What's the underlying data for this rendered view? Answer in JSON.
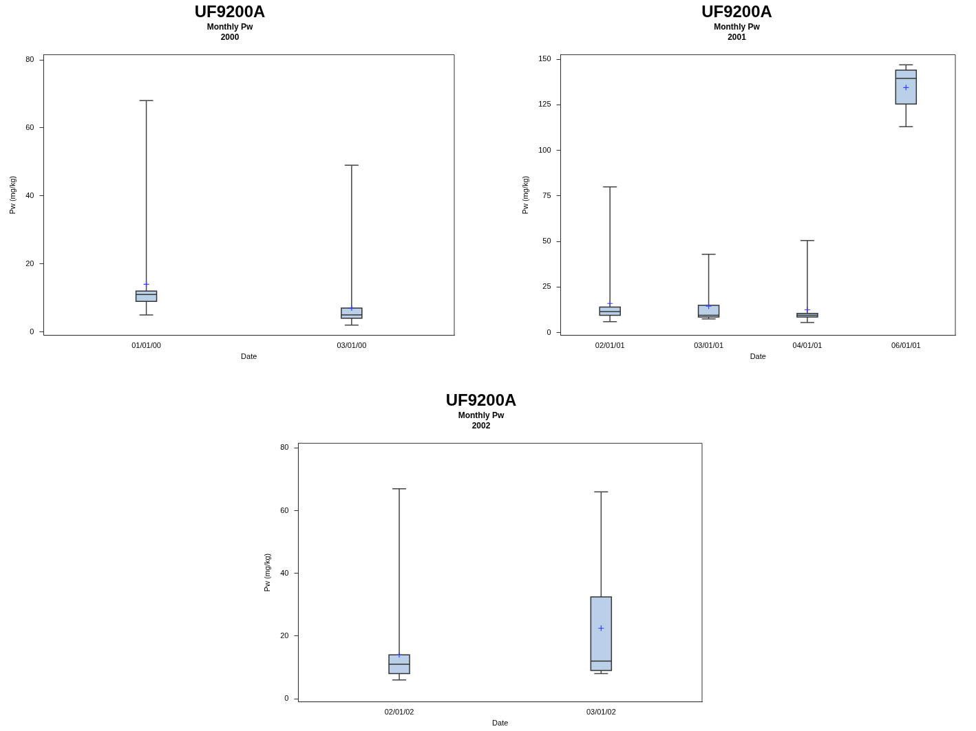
{
  "chart_data": [
    {
      "type": "box",
      "title": "UF9200A",
      "subtitle": "Monthly Pw\n2000",
      "xlabel": "Date",
      "ylabel": "Pw (mg/kg)",
      "categories": [
        "01/01/00",
        "03/01/00"
      ],
      "ylim": [
        -1,
        81.5
      ],
      "yticks": [
        0,
        20,
        40,
        60,
        80
      ],
      "grid": false,
      "legend": false,
      "series": [
        {
          "color": "#b9d0e8",
          "boxes": [
            {
              "low": 5,
              "q1": 9,
              "median": 11,
              "q3": 12,
              "high": 68,
              "mean": 14
            },
            {
              "low": 2,
              "q1": 4,
              "median": 5,
              "q3": 7,
              "high": 49,
              "mean": 7
            }
          ]
        }
      ]
    },
    {
      "type": "box",
      "title": "UF9200A",
      "subtitle": "Monthly Pw\n2001",
      "xlabel": "Date",
      "ylabel": "Pw (mg/kg)",
      "categories": [
        "02/01/01",
        "03/01/01",
        "04/01/01",
        "06/01/01"
      ],
      "ylim": [
        -1.5,
        152.5
      ],
      "yticks": [
        0,
        25,
        50,
        75,
        100,
        125,
        150
      ],
      "grid": false,
      "legend": false,
      "series": [
        {
          "color": "#b9d0e8",
          "boxes": [
            {
              "low": 6,
              "q1": 9.5,
              "median": 11.5,
              "q3": 14,
              "high": 80,
              "mean": 16
            },
            {
              "low": 7.5,
              "q1": 8.5,
              "median": 9.5,
              "q3": 15,
              "high": 43,
              "mean": 14.5
            },
            {
              "low": 5.5,
              "q1": 8.5,
              "median": 9.5,
              "q3": 10.5,
              "high": 50.5,
              "mean": 12.5
            },
            {
              "low": 113,
              "q1": 125.5,
              "median": 139.5,
              "q3": 144,
              "high": 147,
              "mean": 134.5
            }
          ]
        }
      ]
    },
    {
      "type": "box",
      "title": "UF9200A",
      "subtitle": "Monthly Pw\n2002",
      "xlabel": "Date",
      "ylabel": "Pw (mg/kg)",
      "categories": [
        "02/01/02",
        "03/01/02"
      ],
      "ylim": [
        -1,
        81.5
      ],
      "yticks": [
        0,
        20,
        40,
        60,
        80
      ],
      "grid": false,
      "legend": false,
      "series": [
        {
          "color": "#b9d0e8",
          "boxes": [
            {
              "low": 6,
              "q1": 8,
              "median": 11,
              "q3": 14,
              "high": 67,
              "mean": 14
            },
            {
              "low": 8,
              "q1": 9,
              "median": 12,
              "q3": 32.5,
              "high": 66,
              "mean": 22.5
            }
          ]
        }
      ]
    }
  ]
}
